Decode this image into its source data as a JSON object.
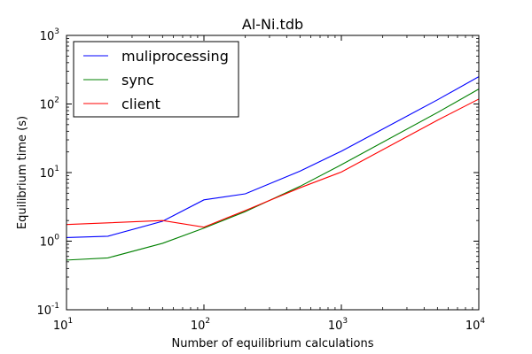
{
  "chart_data": {
    "type": "line",
    "title": "Al-Ni.tdb",
    "xlabel": "Number of equilibrium calculations",
    "ylabel": "Equilibrium time (s)",
    "xscale": "log",
    "yscale": "log",
    "xlim": [
      10,
      10000
    ],
    "ylim": [
      0.1,
      1000
    ],
    "grid": false,
    "legend_position": "upper-left",
    "x_ticks": [
      {
        "value": 10,
        "base": "10",
        "exp": "1"
      },
      {
        "value": 100,
        "base": "10",
        "exp": "2"
      },
      {
        "value": 1000,
        "base": "10",
        "exp": "3"
      },
      {
        "value": 10000,
        "base": "10",
        "exp": "4"
      }
    ],
    "y_ticks": [
      {
        "value": 0.1,
        "base": "10",
        "exp": "-1"
      },
      {
        "value": 1,
        "base": "10",
        "exp": "0"
      },
      {
        "value": 10,
        "base": "10",
        "exp": "1"
      },
      {
        "value": 100,
        "base": "10",
        "exp": "2"
      },
      {
        "value": 1000,
        "base": "10",
        "exp": "3"
      }
    ],
    "x": [
      10,
      20,
      50,
      100,
      200,
      500,
      1000,
      5000,
      10000
    ],
    "series": [
      {
        "name": "muliprocessing",
        "color": "#0000ff",
        "values": [
          1.13,
          1.18,
          1.95,
          4.0,
          4.9,
          10.5,
          20.5,
          115,
          250
        ]
      },
      {
        "name": "sync",
        "color": "#008000",
        "values": [
          0.53,
          0.57,
          0.93,
          1.55,
          2.7,
          6.3,
          13.0,
          75,
          165
        ]
      },
      {
        "name": "client",
        "color": "#ff0000",
        "values": [
          1.75,
          1.85,
          2.0,
          1.6,
          2.8,
          6.0,
          10.2,
          58,
          118
        ]
      }
    ]
  }
}
